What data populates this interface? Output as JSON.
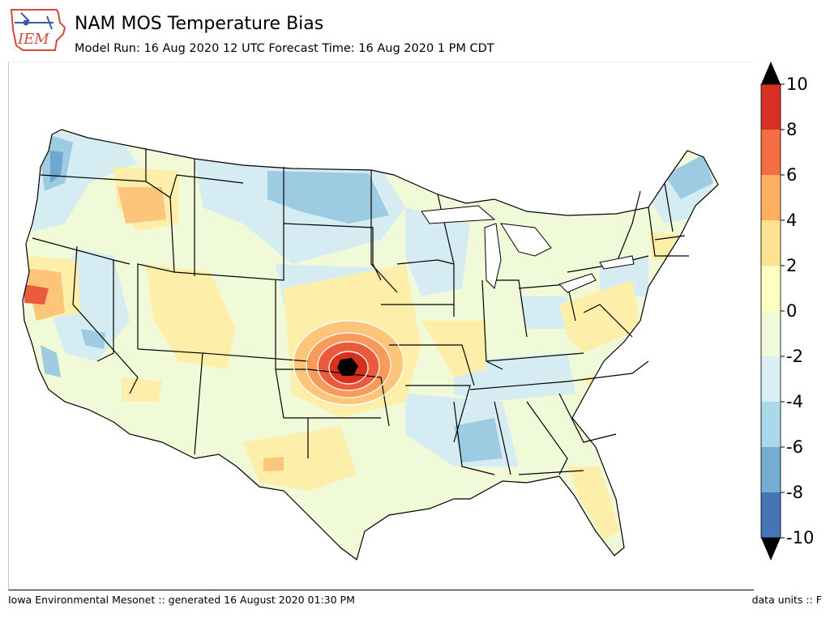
{
  "header": {
    "logo_text": "IEM",
    "title": "NAM MOS Temperature Bias",
    "subtitle": "Model Run: 16 Aug 2020 12 UTC Forecast Time: 16 Aug 2020 1 PM CDT"
  },
  "colorbar": {
    "ticks": [
      "10",
      "8",
      "6",
      "4",
      "2",
      "0",
      "-2",
      "-4",
      "-6",
      "-8",
      "-10"
    ],
    "colors": [
      "#d73027",
      "#f46d43",
      "#fdae61",
      "#fee090",
      "#ffffbf",
      "#f0f9d8",
      "#d9eef5",
      "#abd9e9",
      "#74add1",
      "#4575b4"
    ],
    "extend_colors": {
      "over": "#000000",
      "under": "#000000"
    }
  },
  "map": {
    "region": "CONUS",
    "colors": {
      "neutral": "#f0f9d8",
      "light_blue": "#d6ecf3",
      "blue": "#9ccbe2",
      "dark_blue": "#6fa7cf",
      "yellow": "#fdeeaa",
      "orange": "#fcc57a",
      "dark_orange": "#f89b5a",
      "red": "#ea5a3d",
      "dark_red": "#d7301f",
      "max": "#000000"
    }
  },
  "footer": {
    "left": "Iowa Environmental Mesonet :: generated 16 August 2020 01:30 PM",
    "right": "data units :: F"
  }
}
